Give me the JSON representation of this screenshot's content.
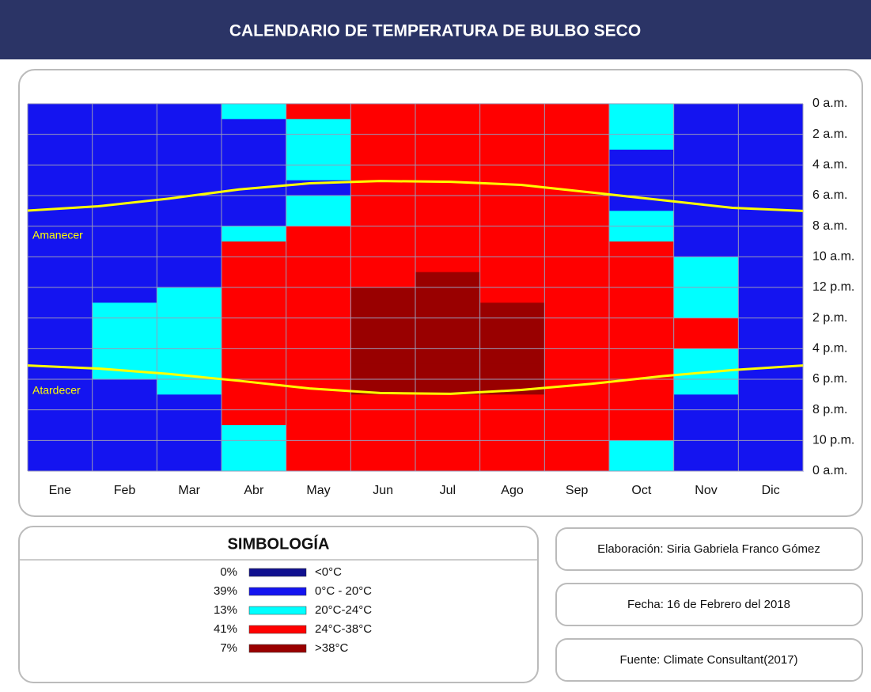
{
  "chart_data": {
    "type": "heatmap",
    "title": "CALENDARIO DE TEMPERATURA DE BULBO SECO",
    "categories": [
      "Ene",
      "Feb",
      "Mar",
      "Abr",
      "May",
      "Jun",
      "Jul",
      "Ago",
      "Sep",
      "Oct",
      "Nov",
      "Dic"
    ],
    "ylim": [
      0,
      24
    ],
    "yticks": [
      {
        "value": 0,
        "label": "0 a.m."
      },
      {
        "value": 2,
        "label": "2 a.m."
      },
      {
        "value": 4,
        "label": "4 a.m."
      },
      {
        "value": 6,
        "label": "6 a.m."
      },
      {
        "value": 8,
        "label": "8 a.m."
      },
      {
        "value": 10,
        "label": "10 a.m."
      },
      {
        "value": 12,
        "label": "12 p.m."
      },
      {
        "value": 14,
        "label": "2 p.m."
      },
      {
        "value": 16,
        "label": "4 p.m."
      },
      {
        "value": 18,
        "label": "6 p.m."
      },
      {
        "value": 20,
        "label": "8 p.m."
      },
      {
        "value": 22,
        "label": "10 p.m."
      },
      {
        "value": 24,
        "label": "0 a.m."
      }
    ],
    "cells": [
      [
        1,
        1,
        1,
        1,
        1,
        1,
        1,
        1,
        1,
        1,
        1,
        1,
        1,
        1,
        1,
        1,
        1,
        1,
        1,
        1,
        1,
        1,
        1,
        1
      ],
      [
        1,
        1,
        1,
        1,
        1,
        1,
        1,
        1,
        1,
        1,
        1,
        1,
        1,
        2,
        2,
        2,
        2,
        2,
        1,
        1,
        1,
        1,
        1,
        1
      ],
      [
        1,
        1,
        1,
        1,
        1,
        1,
        1,
        1,
        1,
        1,
        1,
        1,
        2,
        2,
        2,
        2,
        2,
        2,
        2,
        1,
        1,
        1,
        1,
        1
      ],
      [
        2,
        1,
        1,
        1,
        1,
        1,
        1,
        1,
        2,
        3,
        3,
        3,
        3,
        3,
        3,
        3,
        3,
        3,
        3,
        3,
        3,
        2,
        2,
        2
      ],
      [
        3,
        2,
        2,
        2,
        2,
        1,
        2,
        2,
        3,
        3,
        3,
        3,
        3,
        3,
        3,
        3,
        3,
        3,
        3,
        3,
        3,
        3,
        3,
        3
      ],
      [
        3,
        3,
        3,
        3,
        3,
        3,
        3,
        3,
        3,
        3,
        3,
        3,
        4,
        4,
        4,
        4,
        4,
        4,
        4,
        3,
        3,
        3,
        3,
        3
      ],
      [
        3,
        3,
        3,
        3,
        3,
        3,
        3,
        3,
        3,
        3,
        3,
        4,
        4,
        4,
        4,
        4,
        4,
        4,
        4,
        3,
        3,
        3,
        3,
        3
      ],
      [
        3,
        3,
        3,
        3,
        3,
        3,
        3,
        3,
        3,
        3,
        3,
        3,
        3,
        4,
        4,
        4,
        4,
        4,
        4,
        3,
        3,
        3,
        3,
        3
      ],
      [
        3,
        3,
        3,
        3,
        3,
        3,
        3,
        3,
        3,
        3,
        3,
        3,
        3,
        3,
        3,
        3,
        3,
        3,
        3,
        3,
        3,
        3,
        3,
        3
      ],
      [
        2,
        2,
        2,
        1,
        1,
        1,
        1,
        2,
        2,
        3,
        3,
        3,
        3,
        3,
        3,
        3,
        3,
        3,
        3,
        3,
        3,
        3,
        2,
        2
      ],
      [
        1,
        1,
        1,
        1,
        1,
        1,
        1,
        1,
        1,
        1,
        2,
        2,
        2,
        2,
        3,
        3,
        2,
        2,
        2,
        1,
        1,
        1,
        1,
        1
      ],
      [
        1,
        1,
        1,
        1,
        1,
        1,
        1,
        1,
        1,
        1,
        1,
        1,
        1,
        1,
        1,
        1,
        1,
        1,
        1,
        1,
        1,
        1,
        1,
        1
      ]
    ],
    "lines": [
      {
        "name": "Amanecer",
        "color": "#ffff00",
        "values": [
          6.98,
          6.7,
          6.2,
          5.6,
          5.2,
          5.05,
          5.1,
          5.3,
          5.8,
          6.3,
          6.8,
          7.0
        ]
      },
      {
        "name": "Atardecer",
        "color": "#ffff00",
        "values": [
          17.1,
          17.3,
          17.65,
          18.1,
          18.6,
          18.9,
          18.95,
          18.7,
          18.3,
          17.8,
          17.4,
          17.1
        ]
      }
    ],
    "legend": {
      "title": "SIMBOLOGÍA",
      "items": [
        {
          "percent": "0%",
          "label": "<0°C",
          "color": "#10108f"
        },
        {
          "percent": "39%",
          "label": "0°C - 20°C",
          "color": "#1414f0"
        },
        {
          "percent": "13%",
          "label": "20°C-24°C",
          "color": "#00ffff"
        },
        {
          "percent": "41%",
          "label": "24°C-38°C",
          "color": "#ff0000"
        },
        {
          "percent": "7%",
          "label": ">38°C",
          "color": "#990000"
        }
      ]
    },
    "info": [
      "Elaboración: Siria Gabriela Franco Gómez",
      "Fecha: 16 de Febrero del 2018",
      "Fuente: Climate Consultant(2017)"
    ]
  }
}
